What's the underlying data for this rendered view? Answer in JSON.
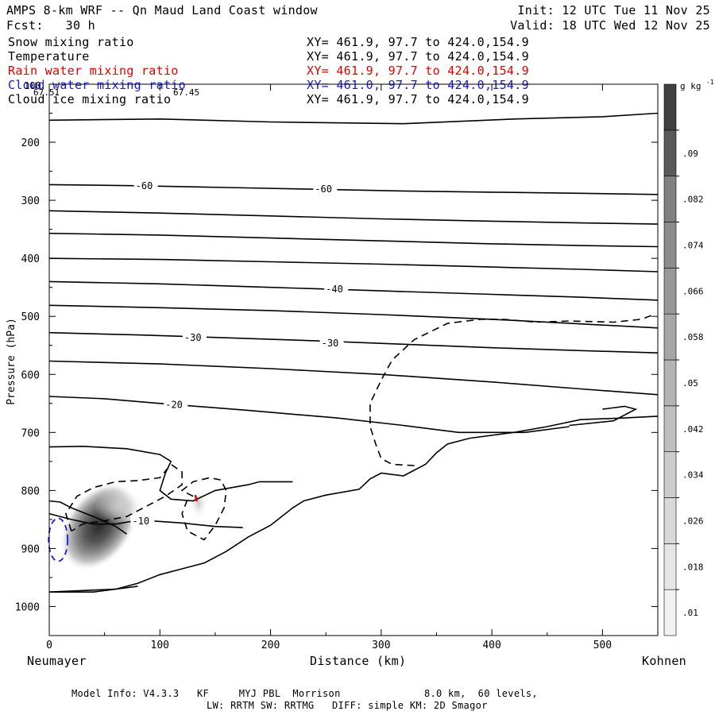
{
  "header": {
    "title_left": "AMPS 8-km WRF -- Qn Maud Land Coast window",
    "fcst": "Fcst:   30 h",
    "init": "Init: 12 UTC Tue 11 Nov 25",
    "valid": "Valid: 18 UTC Wed 12 Nov 25"
  },
  "fields": [
    {
      "name": "Snow mixing ratio",
      "xy": "XY= 461.9, 97.7 to 424.0,154.9",
      "color": "#000000"
    },
    {
      "name": "Temperature",
      "xy": "XY= 461.9, 97.7 to 424.0,154.9",
      "color": "#000000"
    },
    {
      "name": "Rain water mixing ratio",
      "xy": "XY= 461.9, 97.7 to 424.0,154.9",
      "color": "#e00000"
    },
    {
      "name": "Cloud water mixing ratio",
      "xy": "XY= 461.0, 97.7 to 424.0,154.9",
      "color": "#1a1ad6"
    },
    {
      "name": "Cloud ice mixing ratio",
      "xy": "XY= 461.9, 97.7 to 424.0,154.9",
      "color": "#000000"
    }
  ],
  "footer": {
    "line1": "Model Info: V4.3.3   KF     MYJ PBL  Morrison              8.0 km,  60 levels,",
    "line2": "LW: RRTM SW: RRTMG   DIFF: simple KM: 2D Smagor"
  },
  "chart_data": {
    "type": "contour",
    "ylabel": "Pressure (hPa)",
    "xlabel": "Distance (km)",
    "x_left_label": "Neumayer",
    "x_right_label": "Kohnen",
    "xlim": [
      0,
      550
    ],
    "ylim": [
      1050,
      100
    ],
    "x_ticks": [
      0,
      100,
      200,
      300,
      400,
      500
    ],
    "y_ticks": [
      200,
      300,
      400,
      500,
      600,
      700,
      800,
      900,
      1000
    ],
    "y_tick_labels": [
      "200",
      "300",
      "400",
      "500",
      "600",
      "700",
      "800",
      "900",
      "1000"
    ],
    "top_tick_labels": [
      "100",
      "67.51",
      "67.45"
    ],
    "colorbar": {
      "unit": "g kg",
      "unit_sup": "-1",
      "levels": [
        ".01",
        ".018",
        ".026",
        ".034",
        ".042",
        ".05",
        ".058",
        ".066",
        ".074",
        ".082",
        ".09"
      ],
      "colors": [
        "#f2f2f2",
        "#e6e6e6",
        "#d9d9d9",
        "#cccccc",
        "#bfbfbf",
        "#b3b3b3",
        "#a6a6a6",
        "#999999",
        "#8c8c8c",
        "#808080",
        "#595959",
        "#404040"
      ]
    },
    "temperature_contours": [
      {
        "label": "-60",
        "points": [
          [
            0,
            273
          ],
          [
            80,
            275
          ],
          [
            160,
            278
          ],
          [
            240,
            281
          ],
          [
            320,
            284
          ],
          [
            400,
            286
          ],
          [
            480,
            288
          ],
          [
            550,
            290
          ]
        ],
        "labels_at": [
          [
            78,
            275
          ],
          [
            240,
            281
          ]
        ]
      },
      {
        "label": "",
        "points": [
          [
            0,
            318
          ],
          [
            100,
            322
          ],
          [
            200,
            327
          ],
          [
            300,
            332
          ],
          [
            400,
            336
          ],
          [
            480,
            339
          ],
          [
            550,
            341
          ]
        ]
      },
      {
        "label": "",
        "points": [
          [
            0,
            357
          ],
          [
            100,
            360
          ],
          [
            200,
            365
          ],
          [
            300,
            370
          ],
          [
            400,
            375
          ],
          [
            480,
            378
          ],
          [
            550,
            380
          ]
        ]
      },
      {
        "label": "",
        "points": [
          [
            0,
            400
          ],
          [
            100,
            402
          ],
          [
            200,
            406
          ],
          [
            300,
            410
          ],
          [
            400,
            415
          ],
          [
            480,
            419
          ],
          [
            550,
            423
          ]
        ]
      },
      {
        "label": "-40",
        "points": [
          [
            0,
            440
          ],
          [
            100,
            444
          ],
          [
            200,
            450
          ],
          [
            300,
            456
          ],
          [
            400,
            462
          ],
          [
            480,
            467
          ],
          [
            550,
            472
          ]
        ],
        "labels_at": [
          [
            250,
            453
          ]
        ]
      },
      {
        "label": "",
        "points": [
          [
            0,
            481
          ],
          [
            100,
            485
          ],
          [
            200,
            490
          ],
          [
            300,
            497
          ],
          [
            400,
            505
          ],
          [
            480,
            513
          ],
          [
            550,
            520
          ]
        ]
      },
      {
        "label": "-30",
        "points": [
          [
            0,
            528
          ],
          [
            80,
            532
          ],
          [
            160,
            537
          ],
          [
            240,
            542
          ],
          [
            320,
            548
          ],
          [
            400,
            554
          ],
          [
            480,
            559
          ],
          [
            550,
            563
          ]
        ],
        "labels_at": [
          [
            122,
            537
          ],
          [
            246,
            546
          ]
        ]
      },
      {
        "label": "",
        "points": [
          [
            0,
            577
          ],
          [
            100,
            582
          ],
          [
            200,
            590
          ],
          [
            300,
            600
          ],
          [
            400,
            613
          ],
          [
            480,
            625
          ],
          [
            550,
            635
          ]
        ]
      },
      {
        "label": "-20",
        "points": [
          [
            0,
            638
          ],
          [
            50,
            642
          ],
          [
            100,
            650
          ],
          [
            180,
            662
          ],
          [
            260,
            675
          ],
          [
            320,
            688
          ],
          [
            370,
            700
          ],
          [
            430,
            700
          ],
          [
            470,
            690
          ]
        ],
        "labels_at": [
          [
            105,
            652
          ]
        ]
      },
      {
        "label": "-10",
        "points": [
          [
            0,
            840
          ],
          [
            20,
            850
          ],
          [
            40,
            858
          ],
          [
            60,
            858
          ],
          [
            75,
            853
          ],
          [
            90,
            852
          ],
          [
            120,
            856
          ],
          [
            150,
            862
          ],
          [
            175,
            864
          ]
        ],
        "labels_at": [
          [
            75,
            853
          ]
        ]
      }
    ],
    "snow_mixing_ratio_max": 0.09,
    "cloud_water_contour": "dashed-blue",
    "rain_water": "small-red"
  }
}
